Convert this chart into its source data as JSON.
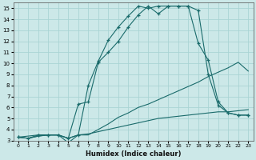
{
  "xlabel": "Humidex (Indice chaleur)",
  "bg_color": "#cce8e8",
  "grid_color": "#aad4d4",
  "line_color": "#1a6b6b",
  "xlim": [
    -0.5,
    23.5
  ],
  "ylim": [
    3,
    15.5
  ],
  "xticks": [
    0,
    1,
    2,
    3,
    4,
    5,
    6,
    7,
    8,
    9,
    10,
    11,
    12,
    13,
    14,
    15,
    16,
    17,
    18,
    19,
    20,
    21,
    22,
    23
  ],
  "yticks": [
    3,
    4,
    5,
    6,
    7,
    8,
    9,
    10,
    11,
    12,
    13,
    14,
    15
  ],
  "lines": [
    {
      "x": [
        0,
        1,
        2,
        3,
        4,
        5,
        6,
        7,
        8,
        9,
        10,
        11,
        12,
        13,
        14,
        15,
        16,
        17,
        18,
        19,
        20,
        21,
        22,
        23
      ],
      "y": [
        3.3,
        3.2,
        3.5,
        3.5,
        3.5,
        2.8,
        3.5,
        8.0,
        10.2,
        12.1,
        13.3,
        14.3,
        15.2,
        15.0,
        15.2,
        15.2,
        15.2,
        15.2,
        14.8,
        9.0,
        6.2,
        5.5,
        5.3,
        5.3
      ],
      "marker": true
    },
    {
      "x": [
        0,
        2,
        3,
        4,
        5,
        6,
        7,
        8,
        9,
        10,
        11,
        12,
        13,
        14,
        15,
        16,
        17,
        18,
        19,
        20,
        21,
        22,
        23
      ],
      "y": [
        3.3,
        3.5,
        3.5,
        3.5,
        3.2,
        6.3,
        6.5,
        10.1,
        11.0,
        12.0,
        13.3,
        14.4,
        15.2,
        14.5,
        15.2,
        15.2,
        15.2,
        11.8,
        10.3,
        6.5,
        5.5,
        5.3,
        5.3
      ],
      "marker": true
    },
    {
      "x": [
        0,
        1,
        2,
        3,
        4,
        5,
        6,
        7,
        8,
        9,
        10,
        11,
        12,
        13,
        14,
        15,
        16,
        17,
        18,
        19,
        20,
        21,
        22,
        23
      ],
      "y": [
        3.3,
        3.2,
        3.4,
        3.5,
        3.5,
        3.2,
        3.5,
        3.5,
        4.0,
        4.5,
        5.1,
        5.5,
        6.0,
        6.3,
        6.7,
        7.1,
        7.5,
        7.9,
        8.3,
        8.8,
        9.2,
        9.6,
        10.1,
        9.3
      ],
      "marker": false
    },
    {
      "x": [
        0,
        1,
        2,
        3,
        4,
        5,
        6,
        7,
        8,
        9,
        10,
        11,
        12,
        13,
        14,
        15,
        16,
        17,
        18,
        19,
        20,
        21,
        22,
        23
      ],
      "y": [
        3.3,
        3.2,
        3.4,
        3.5,
        3.5,
        3.2,
        3.5,
        3.6,
        3.8,
        4.0,
        4.2,
        4.4,
        4.6,
        4.8,
        5.0,
        5.1,
        5.2,
        5.3,
        5.4,
        5.5,
        5.6,
        5.6,
        5.7,
        5.8
      ],
      "marker": false
    }
  ]
}
